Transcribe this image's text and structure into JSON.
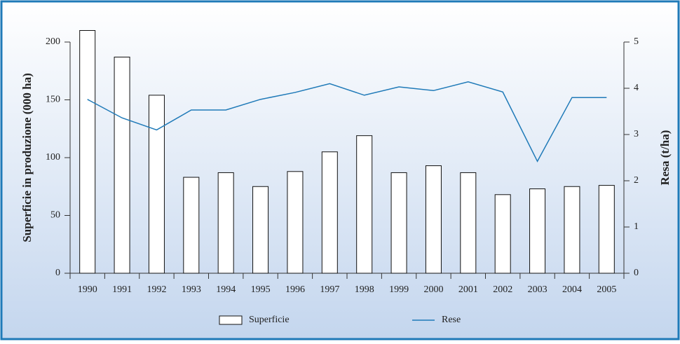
{
  "chart_data": {
    "type": "bar",
    "categories": [
      "1990",
      "1991",
      "1992",
      "1993",
      "1994",
      "1995",
      "1996",
      "1997",
      "1998",
      "1999",
      "2000",
      "2001",
      "2002",
      "2003",
      "2004",
      "2005"
    ],
    "ylabel": "Superficie in produzione (000 ha)",
    "y2label": "Resa (t/ha)",
    "ylim": [
      0,
      200
    ],
    "yticks": [
      0,
      50,
      100,
      150,
      200
    ],
    "y2lim": [
      0,
      5
    ],
    "y2ticks": [
      0,
      1,
      2,
      3,
      4,
      5
    ],
    "series": [
      {
        "name": "Superficie",
        "type": "bar",
        "color": "#ffffff",
        "values": [
          210,
          187,
          154,
          83,
          87,
          75,
          88,
          105,
          119,
          87,
          93,
          87,
          68,
          73,
          75,
          76
        ]
      },
      {
        "name": "Rese",
        "type": "line",
        "axis": "y2",
        "color": "#1f7ab8",
        "values": [
          3.76,
          3.36,
          3.1,
          3.53,
          3.53,
          3.76,
          3.91,
          4.1,
          3.85,
          4.03,
          3.95,
          4.14,
          3.92,
          2.42,
          3.8,
          3.8
        ]
      }
    ],
    "legend": "bottom"
  }
}
